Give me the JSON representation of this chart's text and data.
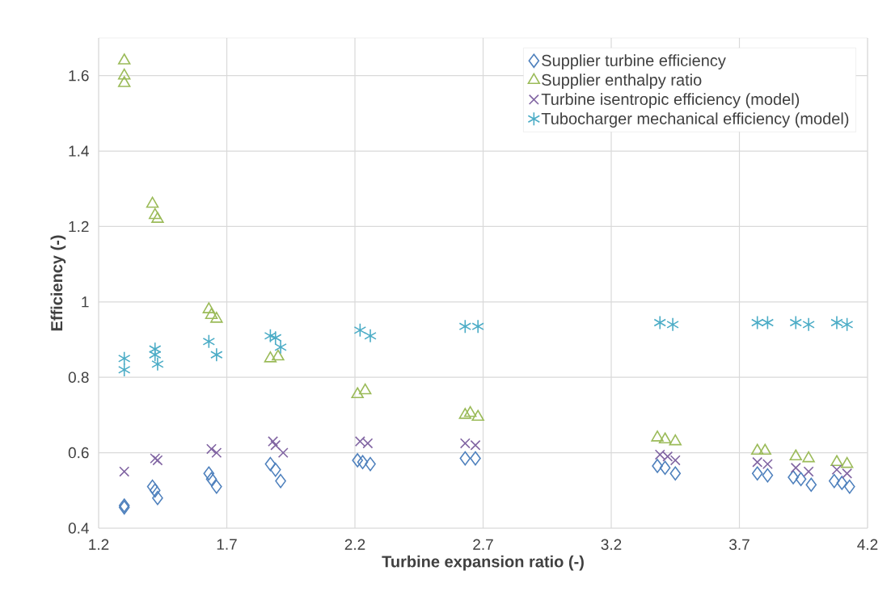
{
  "chart_data": {
    "type": "scatter",
    "xlabel": "Turbine expansion ratio (-)",
    "ylabel": "Efficiency (-)",
    "xlim": [
      1.2,
      4.2
    ],
    "ylim": [
      0.4,
      1.7
    ],
    "xticks": [
      1.2,
      1.7,
      2.2,
      2.7,
      3.2,
      3.7,
      4.2
    ],
    "yticks": [
      0.4,
      0.6,
      0.8,
      1,
      1.2,
      1.4,
      1.6
    ],
    "grid": true,
    "legend": "top right",
    "series": [
      {
        "name": "Supplier turbine efficiency",
        "color": "#4f81bd",
        "marker": "diamond",
        "x": [
          1.3,
          1.3,
          1.41,
          1.42,
          1.43,
          1.63,
          1.64,
          1.66,
          1.87,
          1.89,
          1.91,
          2.21,
          2.23,
          2.26,
          2.63,
          2.67,
          3.38,
          3.41,
          3.45,
          3.77,
          3.81,
          3.91,
          3.94,
          3.98,
          4.07,
          4.1,
          4.13
        ],
        "values": [
          0.46,
          0.455,
          0.51,
          0.5,
          0.48,
          0.545,
          0.53,
          0.51,
          0.57,
          0.555,
          0.525,
          0.58,
          0.575,
          0.57,
          0.585,
          0.585,
          0.565,
          0.56,
          0.545,
          0.545,
          0.54,
          0.535,
          0.53,
          0.515,
          0.525,
          0.52,
          0.51
        ]
      },
      {
        "name": "Supplier enthalpy ratio",
        "color": "#9bbb59",
        "marker": "triangle",
        "x": [
          1.3,
          1.3,
          1.3,
          1.41,
          1.42,
          1.43,
          1.63,
          1.64,
          1.66,
          1.87,
          1.9,
          2.21,
          2.24,
          2.63,
          2.65,
          2.68,
          3.38,
          3.41,
          3.45,
          3.77,
          3.8,
          3.92,
          3.97,
          4.08,
          4.12
        ],
        "values": [
          1.64,
          1.6,
          1.58,
          1.26,
          1.23,
          1.22,
          0.98,
          0.965,
          0.955,
          0.85,
          0.855,
          0.755,
          0.765,
          0.7,
          0.705,
          0.695,
          0.64,
          0.635,
          0.63,
          0.605,
          0.605,
          0.59,
          0.585,
          0.575,
          0.57
        ]
      },
      {
        "name": "Turbine isentropic efficiency (model)",
        "color": "#8064a2",
        "marker": "cross",
        "x": [
          1.3,
          1.42,
          1.43,
          1.64,
          1.66,
          1.88,
          1.89,
          1.92,
          2.22,
          2.25,
          2.63,
          2.67,
          3.39,
          3.42,
          3.45,
          3.77,
          3.81,
          3.92,
          3.97,
          4.08,
          4.12
        ],
        "values": [
          0.55,
          0.585,
          0.58,
          0.61,
          0.6,
          0.63,
          0.62,
          0.6,
          0.63,
          0.625,
          0.625,
          0.62,
          0.595,
          0.59,
          0.58,
          0.575,
          0.57,
          0.56,
          0.55,
          0.555,
          0.545
        ]
      },
      {
        "name": "Tubocharger mechanical efficiency (model)",
        "color": "#4bacc6",
        "x": [
          1.3,
          1.3,
          1.42,
          1.42,
          1.43,
          1.63,
          1.66,
          1.87,
          1.89,
          1.91,
          2.22,
          2.26,
          2.63,
          2.68,
          3.39,
          3.44,
          3.77,
          3.81,
          3.92,
          3.97,
          4.08,
          4.12
        ],
        "values": [
          0.85,
          0.82,
          0.875,
          0.86,
          0.835,
          0.895,
          0.86,
          0.91,
          0.905,
          0.88,
          0.925,
          0.91,
          0.935,
          0.935,
          0.945,
          0.94,
          0.945,
          0.945,
          0.945,
          0.94,
          0.945,
          0.94
        ]
      }
    ]
  }
}
